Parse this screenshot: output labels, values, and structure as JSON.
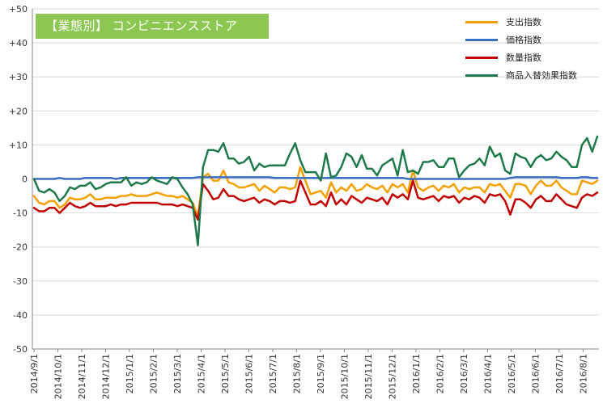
{
  "chart_data": {
    "type": "line",
    "title": "【業態別】 コンビニエンスストア",
    "xlabel": "",
    "ylabel": "",
    "ylim": [
      -50,
      50
    ],
    "y_ticks": [
      "+50",
      "+40",
      "+30",
      "+20",
      "+10",
      "0",
      "-10",
      "-20",
      "-30",
      "-40",
      "-50"
    ],
    "x_tick_labels": [
      "2014/9/1",
      "2014/10/1",
      "2014/11/1",
      "2014/12/1",
      "2015/1/1",
      "2015/2/1",
      "2015/3/1",
      "2015/4/1",
      "2015/5/1",
      "2015/6/1",
      "2015/7/1",
      "2015/8/1",
      "2015/9/1",
      "2015/10/1",
      "2015/11/1",
      "2015/12/1",
      "2016/1/1",
      "2016/2/1",
      "2016/3/1",
      "2016/4/1",
      "2016/5/1",
      "2016/6/1",
      "2016/7/1",
      "2016/8/1"
    ],
    "grid": true,
    "legend_position": "top-right",
    "series": [
      {
        "name": "支出指数",
        "color": "#f5a000",
        "values": [
          -5.0,
          -7.0,
          -7.5,
          -6.5,
          -6.5,
          -8.5,
          -7.5,
          -5.5,
          -6.0,
          -6.0,
          -5.5,
          -4.5,
          -6.0,
          -6.0,
          -5.5,
          -5.5,
          -5.5,
          -5.0,
          -5.0,
          -4.5,
          -5.0,
          -5.0,
          -5.0,
          -4.5,
          -4.0,
          -4.5,
          -5.0,
          -5.0,
          -5.5,
          -5.0,
          -6.0,
          -7.0,
          -11.0,
          0.5,
          1.5,
          -0.5,
          -0.5,
          2.5,
          -1.0,
          -1.5,
          -2.5,
          -2.5,
          -2.0,
          -1.5,
          -3.5,
          -2.0,
          -3.0,
          -4.0,
          -2.5,
          -2.5,
          -3.0,
          -2.5,
          3.5,
          -0.5,
          -4.5,
          -4.0,
          -3.5,
          -5.5,
          -1.0,
          -4.0,
          -2.5,
          -3.5,
          -1.5,
          -3.5,
          -3.0,
          -1.5,
          -2.5,
          -3.0,
          -2.0,
          -4.0,
          -1.5,
          -2.5,
          -1.5,
          -4.0,
          2.5,
          -2.5,
          -3.5,
          -2.5,
          -2.0,
          -3.5,
          -2.0,
          -2.5,
          -1.5,
          -4.0,
          -2.5,
          -3.0,
          -2.5,
          -2.5,
          -4.0,
          -1.5,
          -2.0,
          -1.5,
          -3.5,
          -5.5,
          -1.5,
          -1.5,
          -2.0,
          -4.5,
          -2.0,
          -0.5,
          -2.0,
          -2.0,
          -0.5,
          -2.5,
          -3.5,
          -4.5,
          -4.5,
          -0.5,
          -1.0,
          -1.5,
          -0.5
        ]
      },
      {
        "name": "価格指数",
        "color": "#3a6ec2",
        "values": [
          0.0,
          0.0,
          0.0,
          0.0,
          0.0,
          0.3,
          0.0,
          0.0,
          0.0,
          0.0,
          0.3,
          0.3,
          0.3,
          0.3,
          0.3,
          0.3,
          0.0,
          0.3,
          0.3,
          0.3,
          0.3,
          0.3,
          0.3,
          0.3,
          0.3,
          0.3,
          0.3,
          0.3,
          0.3,
          0.3,
          0.3,
          0.3,
          0.5,
          0.5,
          0.5,
          0.5,
          0.5,
          0.5,
          0.5,
          0.5,
          0.5,
          0.5,
          0.5,
          0.5,
          0.5,
          0.5,
          0.5,
          0.3,
          0.3,
          0.3,
          0.3,
          0.3,
          0.3,
          0.3,
          0.3,
          0.3,
          0.3,
          0.3,
          0.3,
          0.3,
          0.3,
          0.3,
          0.3,
          0.3,
          0.3,
          0.3,
          0.3,
          0.3,
          0.3,
          0.3,
          0.3,
          0.3,
          0.3,
          0.0,
          0.0,
          0.0,
          0.0,
          0.0,
          0.0,
          0.0,
          0.0,
          0.0,
          0.0,
          0.0,
          0.0,
          0.0,
          0.0,
          0.0,
          0.0,
          0.0,
          0.0,
          0.0,
          0.0,
          0.3,
          0.5,
          0.5,
          0.5,
          0.5,
          0.5,
          0.5,
          0.5,
          0.5,
          0.5,
          0.3,
          0.3,
          0.3,
          0.3,
          0.5,
          0.5,
          0.3,
          0.3
        ]
      },
      {
        "name": "数量指数",
        "color": "#c00000",
        "values": [
          -8.5,
          -9.5,
          -9.5,
          -8.5,
          -8.5,
          -10.0,
          -8.5,
          -7.0,
          -8.0,
          -8.5,
          -8.0,
          -7.0,
          -8.0,
          -8.0,
          -8.0,
          -7.5,
          -8.0,
          -7.5,
          -7.5,
          -7.0,
          -7.0,
          -7.0,
          -7.0,
          -7.0,
          -7.0,
          -7.5,
          -7.5,
          -7.5,
          -8.0,
          -7.5,
          -8.0,
          -8.5,
          -12.0,
          -1.5,
          -3.5,
          -6.0,
          -5.5,
          -3.0,
          -5.0,
          -5.0,
          -6.0,
          -6.5,
          -6.0,
          -5.5,
          -7.0,
          -6.0,
          -6.5,
          -7.5,
          -6.5,
          -6.5,
          -7.0,
          -6.5,
          -0.5,
          -4.0,
          -7.5,
          -7.5,
          -6.5,
          -8.0,
          -4.0,
          -7.5,
          -6.0,
          -7.5,
          -5.0,
          -6.0,
          -7.0,
          -5.5,
          -6.0,
          -6.5,
          -5.5,
          -7.5,
          -4.5,
          -5.5,
          -4.5,
          -6.0,
          -0.5,
          -5.5,
          -6.0,
          -5.5,
          -5.0,
          -6.5,
          -5.0,
          -5.5,
          -5.0,
          -7.0,
          -5.5,
          -6.0,
          -5.0,
          -5.5,
          -7.0,
          -4.5,
          -5.0,
          -4.5,
          -6.5,
          -10.5,
          -6.0,
          -6.0,
          -7.0,
          -8.5,
          -6.0,
          -5.0,
          -6.5,
          -6.5,
          -4.5,
          -6.0,
          -7.5,
          -8.0,
          -8.5,
          -5.5,
          -4.5,
          -5.0,
          -4.0
        ]
      },
      {
        "name": "商品入替効果指数",
        "color": "#1e7a4a",
        "values": [
          0.0,
          -3.5,
          -4.0,
          -3.0,
          -4.0,
          -6.5,
          -5.0,
          -2.5,
          -3.0,
          -2.0,
          -2.0,
          -1.0,
          -3.0,
          -2.5,
          -1.5,
          -1.0,
          -1.0,
          -1.0,
          0.5,
          -2.0,
          -1.0,
          -1.5,
          -1.0,
          0.5,
          -0.5,
          -1.0,
          -1.5,
          0.5,
          0.0,
          -2.5,
          -4.5,
          -7.5,
          -19.5,
          3.5,
          8.5,
          8.5,
          8.0,
          10.5,
          6.0,
          6.0,
          4.5,
          5.0,
          6.5,
          2.5,
          4.5,
          3.5,
          4.0,
          4.0,
          4.0,
          4.0,
          7.5,
          10.5,
          5.5,
          2.0,
          2.0,
          2.0,
          -0.5,
          7.5,
          0.5,
          1.0,
          3.5,
          7.5,
          6.5,
          3.5,
          7.0,
          3.0,
          3.0,
          1.0,
          4.0,
          5.0,
          6.0,
          1.0,
          8.5,
          2.0,
          2.5,
          1.5,
          5.0,
          5.0,
          5.5,
          3.5,
          3.5,
          6.0,
          6.0,
          0.5,
          2.5,
          4.0,
          4.5,
          6.0,
          4.0,
          9.5,
          6.5,
          7.5,
          2.5,
          1.5,
          7.5,
          6.5,
          6.0,
          3.5,
          6.0,
          7.0,
          5.5,
          6.0,
          8.0,
          6.5,
          5.5,
          3.5,
          3.5,
          10.0,
          12.0,
          8.0,
          12.5
        ]
      }
    ]
  }
}
